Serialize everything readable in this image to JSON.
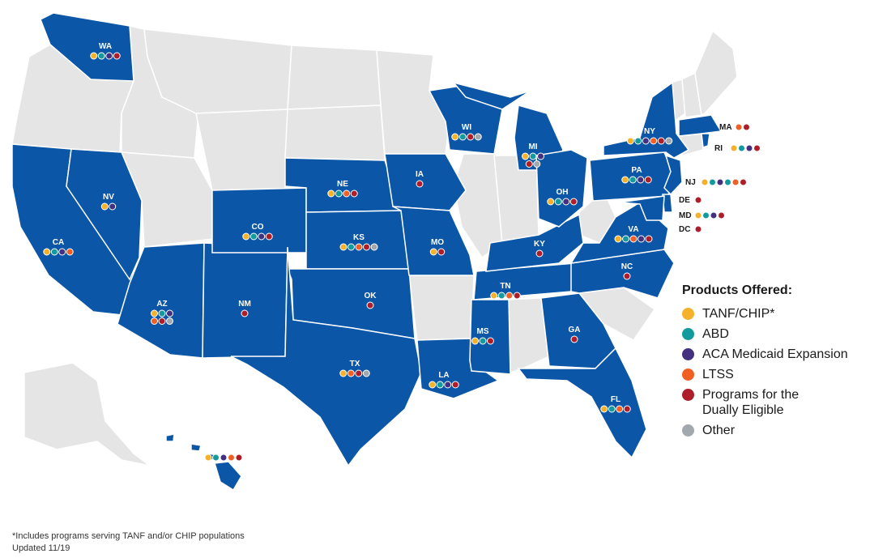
{
  "colors": {
    "covered": "#0b56a6",
    "uncovered": "#e5e5e5",
    "border": "#ffffff",
    "tanf_chip": "#f6b12b",
    "abd": "#139a9c",
    "aca": "#43307f",
    "ltss": "#f15f23",
    "dual": "#ae1e2a",
    "other": "#a3a8ae"
  },
  "legend": {
    "title": "Products Offered:",
    "items": [
      {
        "key": "tanf_chip",
        "label": "TANF/CHIP*"
      },
      {
        "key": "abd",
        "label": "ABD"
      },
      {
        "key": "aca",
        "label": "ACA Medicaid Expansion"
      },
      {
        "key": "ltss",
        "label": "LTSS"
      },
      {
        "key": "dual",
        "label": "Programs for the\nDually Eligible"
      },
      {
        "key": "other",
        "label": "Other"
      }
    ]
  },
  "states": [
    {
      "code": "WA",
      "products": [
        "tanf_chip",
        "abd",
        "aca",
        "dual"
      ]
    },
    {
      "code": "CA",
      "products": [
        "tanf_chip",
        "abd",
        "aca",
        "ltss"
      ]
    },
    {
      "code": "NV",
      "products": [
        "tanf_chip",
        "aca"
      ]
    },
    {
      "code": "AZ",
      "products": [
        "tanf_chip",
        "abd",
        "aca",
        "ltss",
        "dual",
        "other"
      ]
    },
    {
      "code": "NM",
      "products": [
        "dual"
      ]
    },
    {
      "code": "CO",
      "products": [
        "tanf_chip",
        "abd",
        "aca",
        "dual"
      ]
    },
    {
      "code": "NE",
      "products": [
        "tanf_chip",
        "abd",
        "ltss",
        "dual"
      ]
    },
    {
      "code": "KS",
      "products": [
        "tanf_chip",
        "abd",
        "ltss",
        "dual",
        "other"
      ]
    },
    {
      "code": "OK",
      "products": [
        "dual"
      ]
    },
    {
      "code": "TX",
      "products": [
        "tanf_chip",
        "ltss",
        "dual",
        "other"
      ]
    },
    {
      "code": "IA",
      "products": [
        "dual"
      ]
    },
    {
      "code": "MO",
      "products": [
        "tanf_chip",
        "dual"
      ]
    },
    {
      "code": "LA",
      "products": [
        "tanf_chip",
        "abd",
        "aca",
        "dual"
      ]
    },
    {
      "code": "WI",
      "products": [
        "tanf_chip",
        "abd",
        "dual",
        "other"
      ]
    },
    {
      "code": "MI",
      "products": [
        "tanf_chip",
        "abd",
        "aca",
        "dual",
        "other"
      ]
    },
    {
      "code": "MS",
      "products": [
        "tanf_chip",
        "abd",
        "dual"
      ]
    },
    {
      "code": "TN",
      "products": [
        "tanf_chip",
        "abd",
        "ltss",
        "dual"
      ]
    },
    {
      "code": "KY",
      "products": [
        "dual"
      ]
    },
    {
      "code": "OH",
      "products": [
        "tanf_chip",
        "abd",
        "aca",
        "dual"
      ]
    },
    {
      "code": "GA",
      "products": [
        "dual"
      ]
    },
    {
      "code": "FL",
      "products": [
        "tanf_chip",
        "abd",
        "ltss",
        "dual"
      ]
    },
    {
      "code": "NC",
      "products": [
        "dual"
      ]
    },
    {
      "code": "VA",
      "products": [
        "tanf_chip",
        "abd",
        "ltss",
        "aca",
        "dual"
      ]
    },
    {
      "code": "PA",
      "products": [
        "tanf_chip",
        "abd",
        "aca",
        "dual"
      ]
    },
    {
      "code": "NY",
      "products": [
        "tanf_chip",
        "abd",
        "aca",
        "ltss",
        "dual",
        "other"
      ]
    },
    {
      "code": "MA",
      "products": [
        "ltss",
        "dual"
      ]
    },
    {
      "code": "RI",
      "products": [
        "tanf_chip",
        "abd",
        "aca",
        "dual"
      ]
    },
    {
      "code": "NJ",
      "products": [
        "tanf_chip",
        "abd",
        "aca",
        "abd",
        "ltss",
        "dual"
      ]
    },
    {
      "code": "DE",
      "products": [
        "dual"
      ]
    },
    {
      "code": "MD",
      "products": [
        "tanf_chip",
        "abd",
        "aca",
        "dual"
      ]
    },
    {
      "code": "DC",
      "products": [
        "dual"
      ]
    },
    {
      "code": "HI",
      "products": [
        "tanf_chip",
        "abd",
        "aca",
        "ltss",
        "dual"
      ]
    }
  ],
  "footnote": {
    "line1": "*Includes programs serving TANF and/or CHIP populations",
    "line2": "Updated 11/19"
  }
}
